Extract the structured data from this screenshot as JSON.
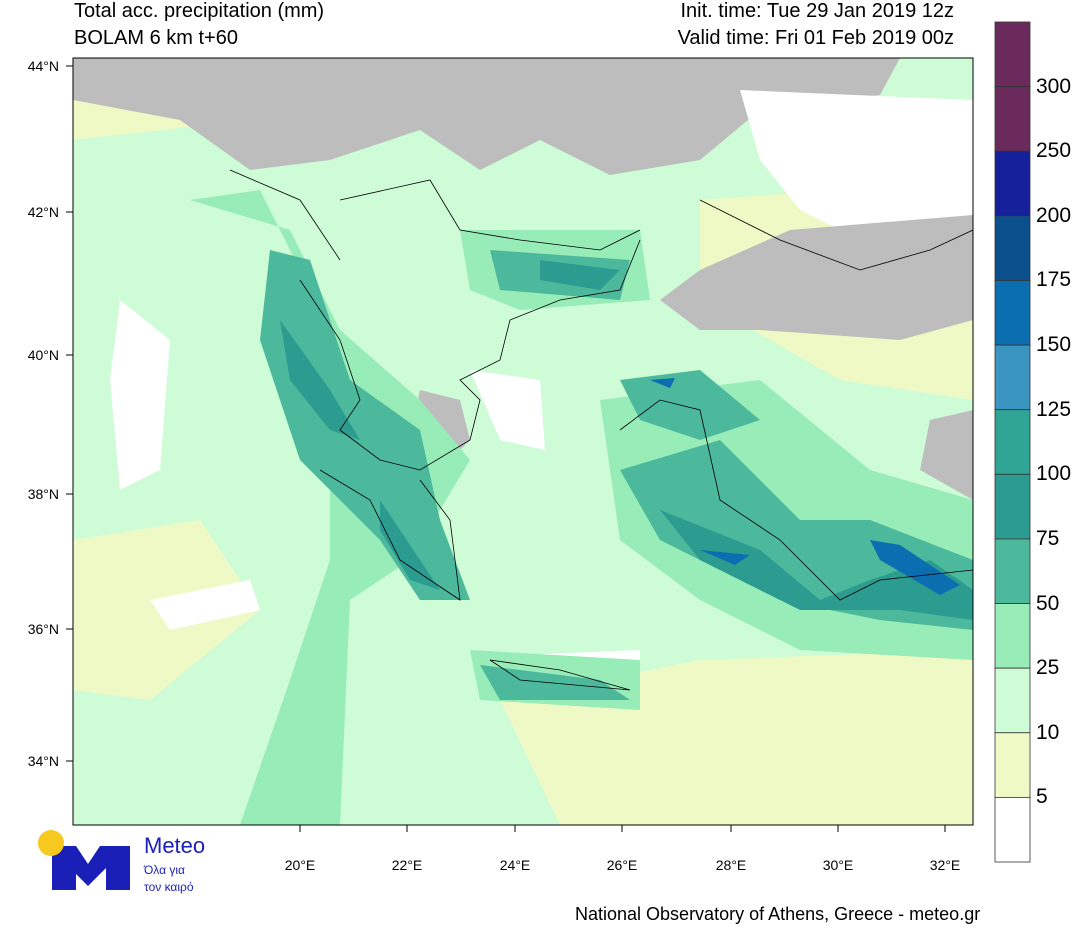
{
  "header": {
    "title": "Total acc. precipitation (mm)",
    "model": "BOLAM 6 km t+60",
    "init_time": "Init. time: Tue 29 Jan 2019 12z",
    "valid_time": "Valid time: Fri 01 Feb 2019 00z"
  },
  "axes": {
    "lat_labels": [
      "44°N",
      "42°N",
      "40°N",
      "38°N",
      "36°N",
      "34°N"
    ],
    "lon_labels": [
      "20°E",
      "22°E",
      "24°E",
      "26°E",
      "28°E",
      "30°E",
      "32°E"
    ]
  },
  "colorbar": {
    "levels": [
      "300",
      "250",
      "200",
      "175",
      "150",
      "125",
      "100",
      "75",
      "50",
      "25",
      "10",
      "5"
    ],
    "colors": [
      "#6a2b5c",
      "#6a2b5c",
      "#15209a",
      "#0b4f8c",
      "#0a6eb0",
      "#3a96c0",
      "#30a595",
      "#2c9b90",
      "#4cb89c",
      "#98ecb8",
      "#cdfcd7",
      "#eff9c6",
      "#ffffff"
    ]
  },
  "map_colors": {
    "land_no_data": "#bdbdbd",
    "sea_dry": "#ffffff"
  },
  "logo": {
    "name": "Meteo",
    "tagline_1": "Όλα για",
    "tagline_2": "τον καιρό",
    "blue": "#1a1fb8",
    "yellow": "#f7c81d"
  },
  "credit": "National Observatory of Athens, Greece - meteo.gr"
}
